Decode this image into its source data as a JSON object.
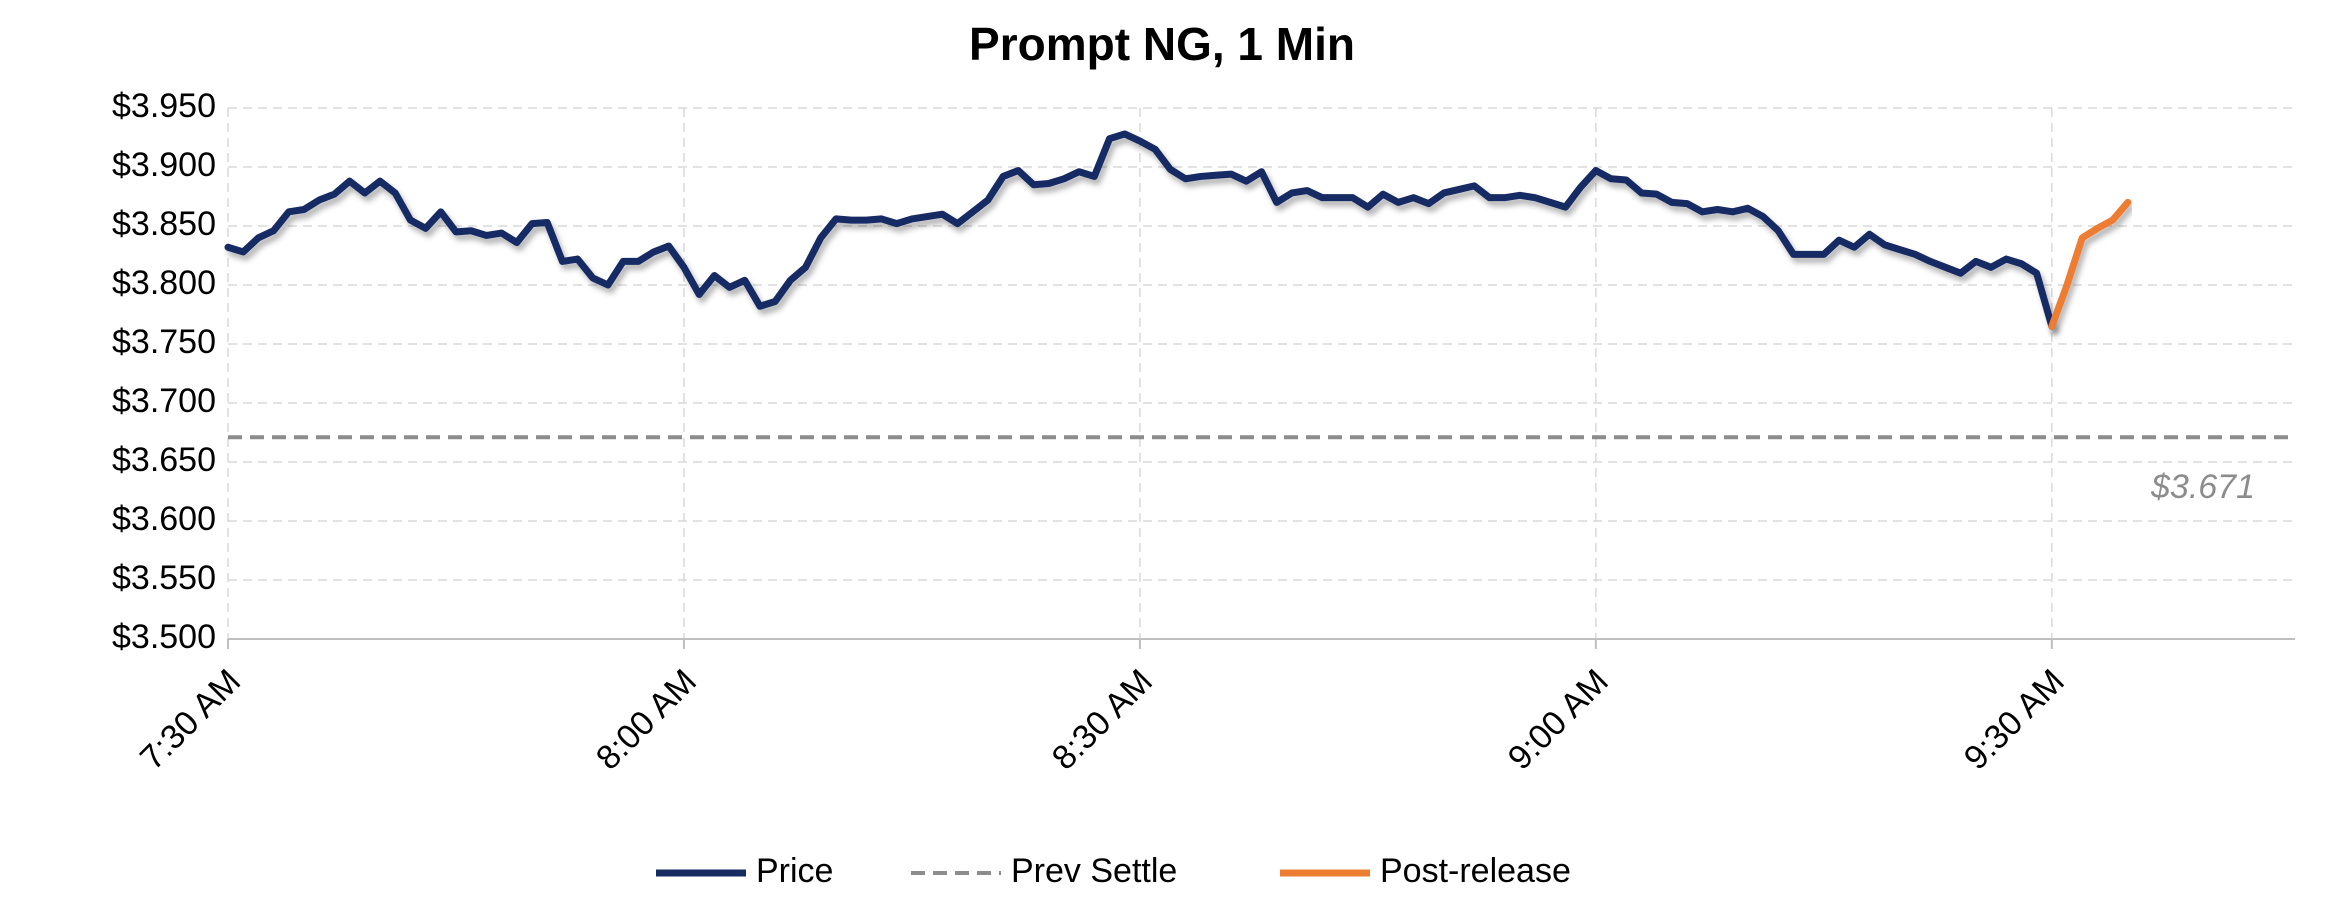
{
  "chart_data": {
    "type": "line",
    "title": "Prompt NG, 1 Min",
    "xlim": [
      "7:30",
      "9:46"
    ],
    "xticks": [
      {
        "value": "7:30",
        "label": "7:30 AM"
      },
      {
        "value": "8:00",
        "label": "8:00 AM"
      },
      {
        "value": "8:30",
        "label": "8:30 AM"
      },
      {
        "value": "9:00",
        "label": "9:00 AM"
      },
      {
        "value": "9:30",
        "label": "9:30 AM"
      }
    ],
    "ylim": [
      3.5,
      3.95
    ],
    "yticks": [
      {
        "value": 3.5,
        "label": "$3.500"
      },
      {
        "value": 3.55,
        "label": "$3.550"
      },
      {
        "value": 3.6,
        "label": "$3.600"
      },
      {
        "value": 3.65,
        "label": "$3.650"
      },
      {
        "value": 3.7,
        "label": "$3.700"
      },
      {
        "value": 3.75,
        "label": "$3.750"
      },
      {
        "value": 3.8,
        "label": "$3.800"
      },
      {
        "value": 3.85,
        "label": "$3.850"
      },
      {
        "value": 3.9,
        "label": "$3.900"
      },
      {
        "value": 3.95,
        "label": "$3.950"
      }
    ],
    "grid": true,
    "series": [
      {
        "name": "Price",
        "color": "#172b63",
        "x": [
          "7:30",
          "7:31",
          "7:32",
          "7:33",
          "7:34",
          "7:35",
          "7:36",
          "7:37",
          "7:38",
          "7:39",
          "7:40",
          "7:41",
          "7:42",
          "7:43",
          "7:44",
          "7:45",
          "7:46",
          "7:47",
          "7:48",
          "7:49",
          "7:50",
          "7:51",
          "7:52",
          "7:53",
          "7:54",
          "7:55",
          "7:56",
          "7:57",
          "7:58",
          "7:59",
          "8:00",
          "8:01",
          "8:02",
          "8:03",
          "8:04",
          "8:05",
          "8:06",
          "8:07",
          "8:08",
          "8:09",
          "8:10",
          "8:11",
          "8:12",
          "8:13",
          "8:14",
          "8:15",
          "8:16",
          "8:17",
          "8:18",
          "8:19",
          "8:20",
          "8:21",
          "8:22",
          "8:23",
          "8:24",
          "8:25",
          "8:26",
          "8:27",
          "8:28",
          "8:29",
          "8:30",
          "8:31",
          "8:32",
          "8:33",
          "8:34",
          "8:35",
          "8:36",
          "8:37",
          "8:38",
          "8:39",
          "8:40",
          "8:41",
          "8:42",
          "8:43",
          "8:44",
          "8:45",
          "8:46",
          "8:47",
          "8:48",
          "8:49",
          "8:50",
          "8:51",
          "8:52",
          "8:53",
          "8:54",
          "8:55",
          "8:56",
          "8:57",
          "8:58",
          "8:59",
          "9:00",
          "9:01",
          "9:02",
          "9:03",
          "9:04",
          "9:05",
          "9:06",
          "9:07",
          "9:08",
          "9:09",
          "9:10",
          "9:11",
          "9:12",
          "9:13",
          "9:14",
          "9:15",
          "9:16",
          "9:17",
          "9:18",
          "9:19",
          "9:20",
          "9:21",
          "9:22",
          "9:23",
          "9:24",
          "9:25",
          "9:26",
          "9:27",
          "9:28",
          "9:29",
          "9:30"
        ],
        "values": [
          3.832,
          3.828,
          3.84,
          3.846,
          3.862,
          3.864,
          3.872,
          3.877,
          3.888,
          3.878,
          3.888,
          3.878,
          3.855,
          3.848,
          3.862,
          3.845,
          3.846,
          3.842,
          3.844,
          3.836,
          3.852,
          3.853,
          3.82,
          3.822,
          3.806,
          3.8,
          3.82,
          3.82,
          3.828,
          3.833,
          3.815,
          3.792,
          3.808,
          3.798,
          3.804,
          3.782,
          3.786,
          3.804,
          3.815,
          3.84,
          3.856,
          3.855,
          3.855,
          3.856,
          3.852,
          3.856,
          3.858,
          3.86,
          3.852,
          3.862,
          3.872,
          3.892,
          3.897,
          3.885,
          3.886,
          3.89,
          3.896,
          3.892,
          3.924,
          3.928,
          3.922,
          3.915,
          3.898,
          3.89,
          3.892,
          3.893,
          3.894,
          3.888,
          3.896,
          3.87,
          3.878,
          3.88,
          3.874,
          3.874,
          3.874,
          3.866,
          3.877,
          3.87,
          3.874,
          3.869,
          3.878,
          3.881,
          3.884,
          3.874,
          3.874,
          3.876,
          3.874,
          3.87,
          3.866,
          3.883,
          3.897,
          3.89,
          3.889,
          3.878,
          3.877,
          3.87,
          3.869,
          3.862,
          3.864,
          3.862,
          3.865,
          3.858,
          3.846,
          3.826,
          3.826,
          3.826,
          3.838,
          3.832,
          3.843,
          3.834,
          3.83,
          3.826,
          3.82,
          3.815,
          3.81,
          3.82,
          3.815,
          3.822,
          3.818,
          3.81,
          3.765
        ]
      },
      {
        "name": "Prev Settle",
        "color": "#8c8c8c",
        "dashed": true,
        "value": 3.671,
        "value_label": "$3.671"
      },
      {
        "name": "Post-release",
        "color": "#ed7d31",
        "x": [
          "9:30",
          "9:31",
          "9:32",
          "9:33",
          "9:34",
          "9:35"
        ],
        "values": [
          3.765,
          3.8,
          3.84,
          3.848,
          3.855,
          3.87
        ]
      }
    ]
  }
}
